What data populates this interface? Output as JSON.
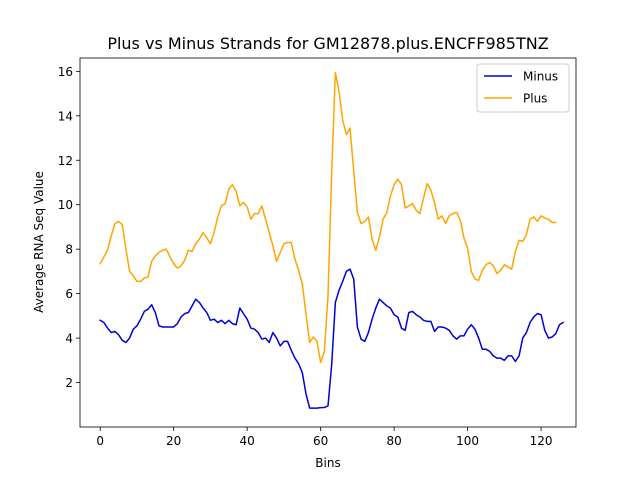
{
  "chart_data": {
    "type": "line",
    "title": "Plus vs Minus Strands for GM12878.plus.ENCFF985TNZ",
    "xlabel": "Bins",
    "ylabel": "Average RNA Seq Value",
    "xlim": [
      -5.5,
      129.5
    ],
    "ylim": [
      0.0,
      16.6
    ],
    "xticks": [
      0,
      20,
      40,
      60,
      80,
      100,
      120
    ],
    "yticks": [
      2,
      4,
      6,
      8,
      10,
      12,
      14,
      16
    ],
    "grid": false,
    "legend_position": "top-right",
    "series": [
      {
        "name": "Minus",
        "color": "#0000dd",
        "values": [
          4.8,
          4.7,
          4.45,
          4.25,
          4.3,
          4.15,
          3.9,
          3.8,
          4.0,
          4.4,
          4.55,
          4.85,
          5.2,
          5.3,
          5.5,
          5.15,
          4.55,
          4.5,
          4.5,
          4.5,
          4.5,
          4.65,
          4.95,
          5.1,
          5.15,
          5.45,
          5.75,
          5.6,
          5.35,
          5.15,
          4.8,
          4.85,
          4.7,
          4.8,
          4.65,
          4.8,
          4.65,
          4.6,
          5.35,
          5.1,
          4.85,
          4.45,
          4.4,
          4.25,
          3.95,
          4.0,
          3.8,
          4.25,
          4.0,
          3.65,
          3.85,
          3.85,
          3.45,
          3.1,
          2.85,
          2.45,
          1.5,
          0.85,
          0.85,
          0.85,
          0.87,
          0.88,
          0.95,
          2.8,
          5.6,
          6.15,
          6.55,
          7.0,
          7.1,
          6.65,
          4.5,
          3.95,
          3.85,
          4.25,
          4.85,
          5.35,
          5.75,
          5.6,
          5.45,
          5.35,
          5.05,
          4.95,
          4.45,
          4.35,
          5.15,
          5.2,
          5.05,
          4.95,
          4.8,
          4.75,
          4.75,
          4.3,
          4.5,
          4.5,
          4.45,
          4.35,
          4.1,
          3.95,
          4.1,
          4.1,
          4.4,
          4.6,
          4.4,
          4.0,
          3.5,
          3.5,
          3.4,
          3.2,
          3.1,
          3.1,
          3.0,
          3.2,
          3.2,
          2.95,
          3.2,
          4.0,
          4.25,
          4.7,
          4.95,
          5.1,
          5.05,
          4.35,
          4.0,
          4.05,
          4.2,
          4.6,
          4.7
        ]
      },
      {
        "name": "Plus",
        "color": "#ffa500",
        "values": [
          7.35,
          7.65,
          7.95,
          8.6,
          9.15,
          9.25,
          9.1,
          8.0,
          7.0,
          6.8,
          6.55,
          6.55,
          6.7,
          6.75,
          7.45,
          7.7,
          7.85,
          7.95,
          8.0,
          7.65,
          7.35,
          7.15,
          7.25,
          7.5,
          7.95,
          7.9,
          8.25,
          8.45,
          8.75,
          8.5,
          8.25,
          8.75,
          9.45,
          9.95,
          10.05,
          10.7,
          10.9,
          10.6,
          9.95,
          10.1,
          9.9,
          9.35,
          9.6,
          9.6,
          9.95,
          9.35,
          8.75,
          8.15,
          7.45,
          7.85,
          8.25,
          8.3,
          8.3,
          7.55,
          7.05,
          6.45,
          5.1,
          3.8,
          4.05,
          3.85,
          2.9,
          3.4,
          5.9,
          11.4,
          15.95,
          15.1,
          13.8,
          13.15,
          13.45,
          11.5,
          9.65,
          9.15,
          9.25,
          9.45,
          8.45,
          7.95,
          8.55,
          9.35,
          9.65,
          10.4,
          10.9,
          11.15,
          10.9,
          9.85,
          9.95,
          10.05,
          9.75,
          9.6,
          10.3,
          10.95,
          10.65,
          10.1,
          9.35,
          9.5,
          9.15,
          9.5,
          9.6,
          9.65,
          9.3,
          8.5,
          8.05,
          7.0,
          6.65,
          6.6,
          7.05,
          7.3,
          7.4,
          7.25,
          6.9,
          7.05,
          7.3,
          7.2,
          7.1,
          7.9,
          8.4,
          8.35,
          8.65,
          9.35,
          9.45,
          9.25,
          9.5,
          9.4,
          9.35,
          9.2,
          9.2
        ]
      }
    ]
  }
}
